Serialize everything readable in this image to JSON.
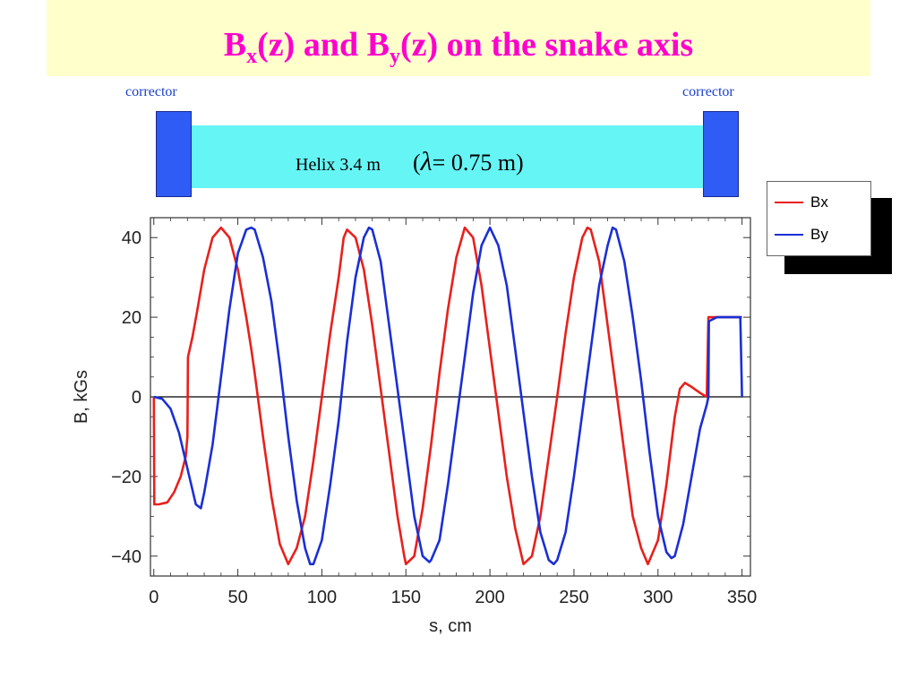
{
  "title": {
    "part1": "B",
    "sub1": "x",
    "part2": "(z) and B",
    "sub2": "y",
    "part3": "(z) on the snake axis"
  },
  "schematic": {
    "corrector_left": "corrector",
    "corrector_right": "corrector",
    "helix_label": "Helix 3.4 m",
    "lambda_open": "(",
    "lambda_symbol": "λ",
    "lambda_rest": "= 0.75 m)"
  },
  "legend": {
    "bx": "Bx",
    "by": "By"
  },
  "colors": {
    "bx": "#e8201c",
    "by": "#1a2fd6",
    "title": "#ff00cc",
    "helix": "#66f5f5",
    "corrector": "#2e5cf5"
  },
  "chart_data": {
    "type": "line",
    "title": "",
    "xlabel": "s, cm",
    "ylabel": "B, kGs",
    "xlim": [
      -2,
      355
    ],
    "ylim": [
      -45,
      45
    ],
    "xticks": [
      0,
      50,
      100,
      150,
      200,
      250,
      300,
      350
    ],
    "xtick_labels": [
      "0",
      "50",
      "100",
      "150",
      "200",
      "250",
      "300",
      "350"
    ],
    "yticks": [
      -40,
      -20,
      0,
      20,
      40
    ],
    "ytick_labels": [
      "−40",
      "−20",
      "0",
      "20",
      "40"
    ],
    "grid": false,
    "zero_line": true,
    "legend_position": "outside-top-right",
    "series": [
      {
        "name": "Bx",
        "color": "#e8201c",
        "x": [
          0,
          0.3,
          3,
          8,
          12,
          16,
          19,
          20,
          20.3,
          23,
          26,
          30,
          35,
          40,
          45,
          50,
          55,
          58,
          60,
          65,
          70,
          75,
          80,
          85,
          90,
          95,
          100,
          105,
          110,
          113,
          115,
          120,
          125,
          130,
          135,
          140,
          145,
          149,
          150,
          155,
          160,
          165,
          170,
          175,
          180,
          185,
          190,
          195,
          200,
          205,
          210,
          215,
          220,
          225,
          230,
          235,
          240,
          245,
          250,
          255,
          258,
          260,
          265,
          270,
          275,
          280,
          285,
          290,
          294,
          300,
          305,
          310,
          313,
          316,
          320,
          325,
          329,
          330,
          330.3,
          335,
          340,
          345,
          350
        ],
        "y": [
          0,
          -27,
          -27,
          -26.5,
          -24,
          -20,
          -15,
          -10,
          10,
          15,
          22,
          32,
          40,
          42.5,
          40,
          32,
          20,
          12,
          6,
          -10,
          -25,
          -37,
          -42,
          -38,
          -30,
          -16,
          0,
          16,
          30,
          40,
          42,
          40,
          32,
          18,
          2,
          -14,
          -30,
          -40,
          -42,
          -40,
          -28,
          -12,
          6,
          22,
          35,
          42.5,
          40,
          28,
          12,
          -4,
          -20,
          -33,
          -42,
          -40,
          -30,
          -15,
          0,
          16,
          30,
          40,
          42.5,
          42,
          34,
          18,
          2,
          -14,
          -30,
          -38,
          -42,
          -36,
          -22,
          -5,
          2,
          3.5,
          2.5,
          1,
          0,
          20,
          20,
          20,
          20,
          20,
          20
        ]
      },
      {
        "name": "By",
        "color": "#1a2fd6",
        "x": [
          0,
          5,
          10,
          15,
          20,
          25,
          28,
          30,
          35,
          40,
          45,
          50,
          55,
          58,
          60,
          65,
          70,
          75,
          80,
          85,
          90,
          93,
          95,
          100,
          105,
          110,
          115,
          120,
          125,
          128,
          130,
          135,
          140,
          145,
          150,
          155,
          160,
          164,
          165,
          170,
          175,
          180,
          185,
          190,
          195,
          200,
          205,
          210,
          215,
          220,
          225,
          230,
          235,
          238,
          240,
          245,
          250,
          255,
          260,
          265,
          270,
          273,
          275,
          280,
          285,
          290,
          295,
          300,
          305,
          308,
          310,
          315,
          320,
          325,
          329,
          330,
          330.3,
          335,
          349,
          350
        ],
        "y": [
          0,
          -0.5,
          -3,
          -9,
          -18,
          -27,
          -28,
          -24,
          -12,
          5,
          22,
          36,
          42,
          42.5,
          42,
          35,
          24,
          8,
          -10,
          -26,
          -38,
          -42,
          -42,
          -36,
          -22,
          -6,
          14,
          30,
          40,
          42.5,
          42,
          34,
          18,
          2,
          -14,
          -30,
          -40,
          -41.5,
          -41,
          -36,
          -22,
          -6,
          10,
          26,
          38,
          42.5,
          38,
          28,
          12,
          -4,
          -20,
          -34,
          -41,
          -42,
          -41,
          -34,
          -20,
          -4,
          12,
          28,
          38,
          42.5,
          42,
          34,
          20,
          4,
          -14,
          -30,
          -39,
          -40.5,
          -40,
          -32,
          -20,
          -8,
          -2,
          0,
          19,
          20,
          20,
          0
        ]
      }
    ]
  }
}
